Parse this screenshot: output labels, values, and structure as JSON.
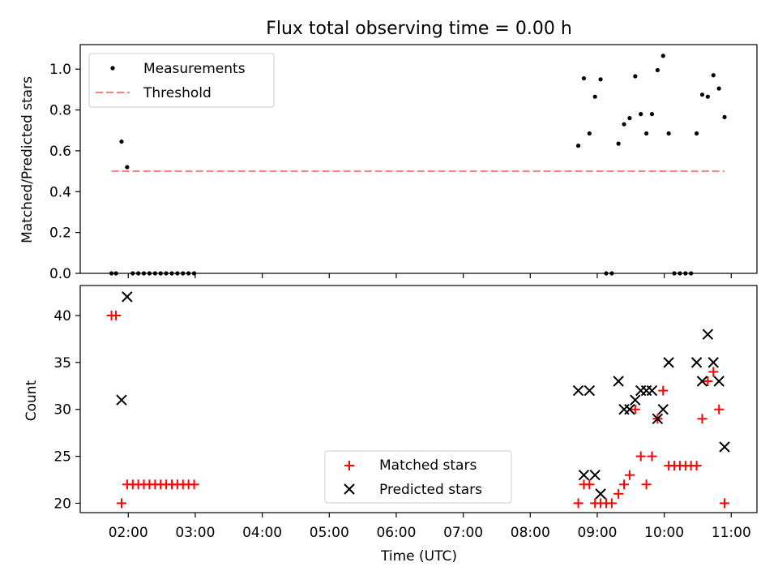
{
  "figure": {
    "title": "Flux total observing time = 0.00 h"
  },
  "chart_data": [
    {
      "type": "scatter",
      "ylabel": "Matched/Predicted stars",
      "xlabel": "",
      "xlim": [
        "01:17",
        "11:23"
      ],
      "ylim": [
        0,
        1.12
      ],
      "yticks": [
        0.0,
        0.2,
        0.4,
        0.6,
        0.8,
        1.0
      ],
      "ytick_labels": [
        "0.0",
        "0.2",
        "0.4",
        "0.6",
        "0.8",
        "1.0"
      ],
      "xticks": [
        "02:00",
        "03:00",
        "04:00",
        "05:00",
        "06:00",
        "07:00",
        "08:00",
        "09:00",
        "10:00",
        "11:00"
      ],
      "grid": false,
      "legend": "top-left",
      "series": [
        {
          "name": "Measurements",
          "marker": "dot",
          "color": "#000000",
          "points": [
            [
              "01:45",
              0.0
            ],
            [
              "01:49",
              0.0
            ],
            [
              "01:54",
              0.645
            ],
            [
              "01:59",
              0.52
            ],
            [
              "02:04",
              0.0
            ],
            [
              "02:09",
              0.0
            ],
            [
              "02:14",
              0.0
            ],
            [
              "02:19",
              0.0
            ],
            [
              "02:24",
              0.0
            ],
            [
              "02:29",
              0.0
            ],
            [
              "02:34",
              0.0
            ],
            [
              "02:39",
              0.0
            ],
            [
              "02:44",
              0.0
            ],
            [
              "02:49",
              0.0
            ],
            [
              "02:54",
              0.0
            ],
            [
              "02:59",
              0.0
            ],
            [
              "08:43",
              0.625
            ],
            [
              "08:48",
              0.955
            ],
            [
              "08:53",
              0.685
            ],
            [
              "08:58",
              0.865
            ],
            [
              "09:03",
              0.95
            ],
            [
              "09:08",
              0.0
            ],
            [
              "09:13",
              0.0
            ],
            [
              "09:19",
              0.635
            ],
            [
              "09:24",
              0.73
            ],
            [
              "09:29",
              0.76
            ],
            [
              "09:34",
              0.965
            ],
            [
              "09:39",
              0.78
            ],
            [
              "09:44",
              0.685
            ],
            [
              "09:49",
              0.78
            ],
            [
              "09:54",
              0.995
            ],
            [
              "09:59",
              1.065
            ],
            [
              "10:04",
              0.685
            ],
            [
              "10:09",
              0.0
            ],
            [
              "10:14",
              0.0
            ],
            [
              "10:19",
              0.0
            ],
            [
              "10:24",
              0.0
            ],
            [
              "10:29",
              0.685
            ],
            [
              "10:34",
              0.875
            ],
            [
              "10:39",
              0.865
            ],
            [
              "10:44",
              0.97
            ],
            [
              "10:49",
              0.905
            ],
            [
              "10:54",
              0.765
            ]
          ]
        },
        {
          "name": "Threshold",
          "marker": "dashed-line",
          "color": "#ff7f7f",
          "points": [
            [
              "01:45",
              0.5
            ],
            [
              "10:54",
              0.5
            ]
          ]
        }
      ]
    },
    {
      "type": "scatter",
      "ylabel": "Count",
      "xlabel": "Time (UTC)",
      "xlim": [
        "01:17",
        "11:23"
      ],
      "ylim": [
        19,
        43.2
      ],
      "yticks": [
        20,
        25,
        30,
        35,
        40
      ],
      "ytick_labels": [
        "20",
        "25",
        "30",
        "35",
        "40"
      ],
      "xticks": [
        "02:00",
        "03:00",
        "04:00",
        "05:00",
        "06:00",
        "07:00",
        "08:00",
        "09:00",
        "10:00",
        "11:00"
      ],
      "xtick_labels": [
        "02:00",
        "03:00",
        "04:00",
        "05:00",
        "06:00",
        "07:00",
        "08:00",
        "09:00",
        "10:00",
        "11:00"
      ],
      "grid": false,
      "legend": "lower-center",
      "series": [
        {
          "name": "Matched stars",
          "marker": "plus",
          "color": "#ff0000",
          "points": [
            [
              "01:45",
              40
            ],
            [
              "01:49",
              40
            ],
            [
              "01:54",
              20
            ],
            [
              "01:59",
              22
            ],
            [
              "02:04",
              22
            ],
            [
              "02:09",
              22
            ],
            [
              "02:14",
              22
            ],
            [
              "02:19",
              22
            ],
            [
              "02:24",
              22
            ],
            [
              "02:29",
              22
            ],
            [
              "02:34",
              22
            ],
            [
              "02:39",
              22
            ],
            [
              "02:44",
              22
            ],
            [
              "02:49",
              22
            ],
            [
              "02:54",
              22
            ],
            [
              "02:59",
              22
            ],
            [
              "08:43",
              20
            ],
            [
              "08:48",
              22
            ],
            [
              "08:53",
              22
            ],
            [
              "08:58",
              20
            ],
            [
              "09:03",
              20
            ],
            [
              "09:08",
              20
            ],
            [
              "09:13",
              20
            ],
            [
              "09:19",
              21
            ],
            [
              "09:24",
              22
            ],
            [
              "09:29",
              23
            ],
            [
              "09:34",
              30
            ],
            [
              "09:39",
              25
            ],
            [
              "09:44",
              22
            ],
            [
              "09:49",
              25
            ],
            [
              "09:54",
              29
            ],
            [
              "09:59",
              32
            ],
            [
              "10:04",
              24
            ],
            [
              "10:09",
              24
            ],
            [
              "10:14",
              24
            ],
            [
              "10:19",
              24
            ],
            [
              "10:24",
              24
            ],
            [
              "10:29",
              24
            ],
            [
              "10:34",
              29
            ],
            [
              "10:39",
              33
            ],
            [
              "10:44",
              34
            ],
            [
              "10:49",
              30
            ],
            [
              "10:54",
              20
            ]
          ]
        },
        {
          "name": "Predicted stars",
          "marker": "x",
          "color": "#000000",
          "points": [
            [
              "01:54",
              31
            ],
            [
              "01:59",
              42
            ],
            [
              "08:43",
              32
            ],
            [
              "08:48",
              23
            ],
            [
              "08:53",
              32
            ],
            [
              "08:58",
              23
            ],
            [
              "09:03",
              21
            ],
            [
              "09:19",
              33
            ],
            [
              "09:24",
              30
            ],
            [
              "09:29",
              30
            ],
            [
              "09:34",
              31
            ],
            [
              "09:39",
              32
            ],
            [
              "09:44",
              32
            ],
            [
              "09:49",
              32
            ],
            [
              "09:54",
              29
            ],
            [
              "09:59",
              30
            ],
            [
              "10:04",
              35
            ],
            [
              "10:29",
              35
            ],
            [
              "10:34",
              33
            ],
            [
              "10:39",
              38
            ],
            [
              "10:44",
              35
            ],
            [
              "10:49",
              33
            ],
            [
              "10:54",
              26
            ]
          ]
        }
      ]
    }
  ]
}
